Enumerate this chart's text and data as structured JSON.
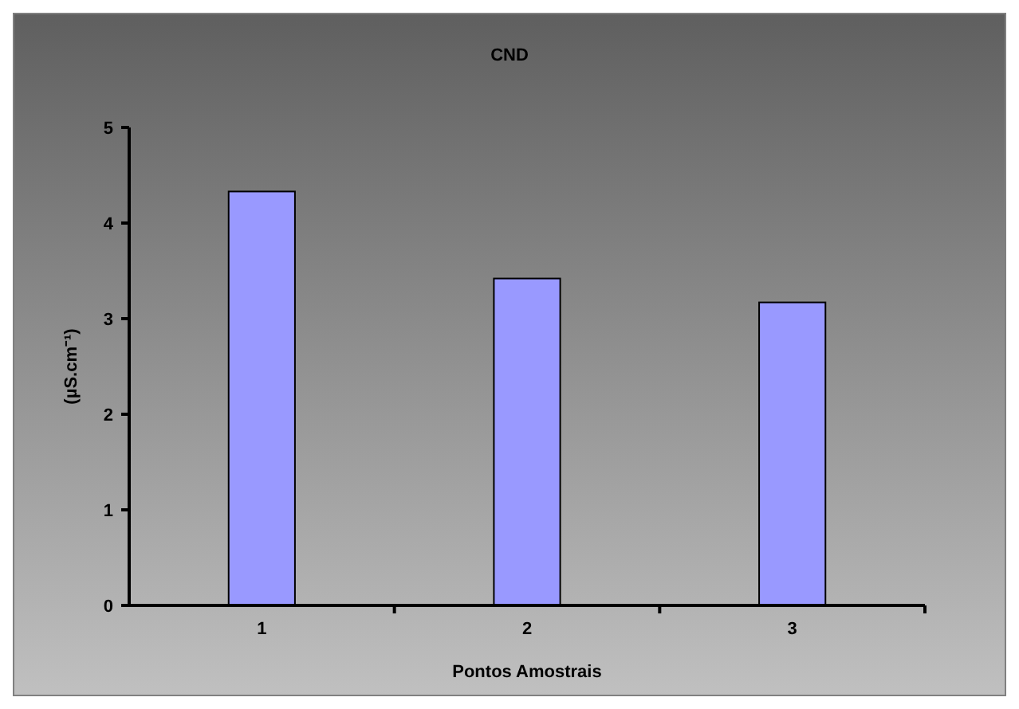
{
  "chart_data": {
    "type": "bar",
    "title": "CND",
    "xlabel": "Pontos Amostrais",
    "ylabel": "(µS.cm⁻¹)",
    "categories": [
      "1",
      "2",
      "3"
    ],
    "values": [
      4.33,
      3.42,
      3.17
    ],
    "color": "#9999ff",
    "ylim": [
      0,
      5
    ],
    "yticks": [
      0,
      1,
      2,
      3,
      4,
      5
    ],
    "grid": false
  }
}
